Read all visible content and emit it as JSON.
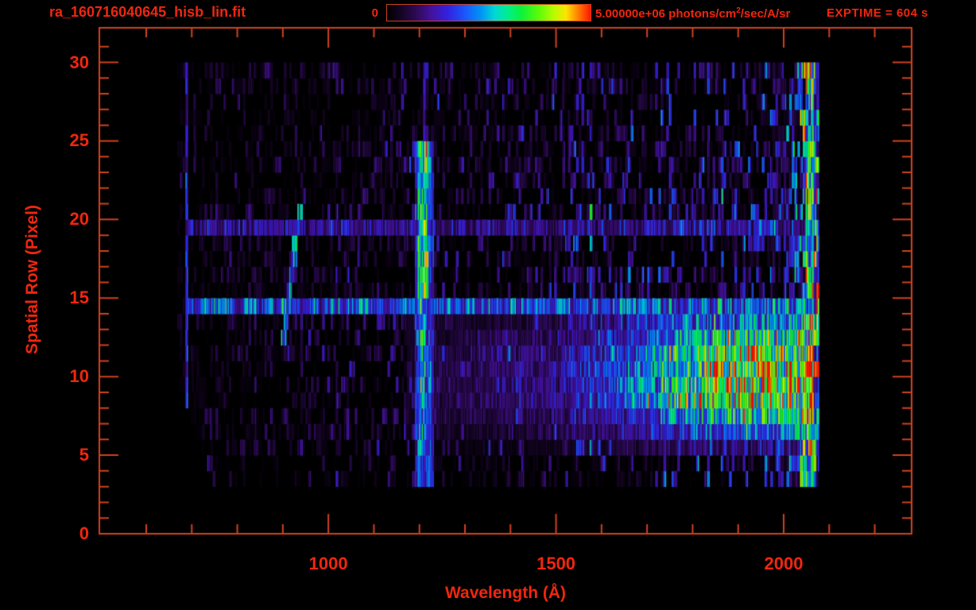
{
  "header": {
    "title": "ra_160716040645_hisb_lin.fit",
    "colorbar_min_label": "0",
    "colorbar_max_label_prefix": "5.00000e+06 photons/cm",
    "colorbar_max_label_sup": "2",
    "colorbar_max_label_suffix": "/sec/A/sr",
    "exposure_label": "EXPTIME = 604 s"
  },
  "chart_data": {
    "type": "heatmap",
    "title": "ra_160716040645_hisb_lin.fit",
    "xlabel": "Wavelength (Å)",
    "ylabel": "Spatial Row (Pixel)",
    "xlim": [
      497,
      2281
    ],
    "ylim": [
      0,
      32.2
    ],
    "x_major_ticks": [
      1000,
      1500,
      2000
    ],
    "x_minor_tick_step": 100,
    "y_major_ticks": [
      0,
      5,
      10,
      15,
      20,
      25,
      30
    ],
    "y_minor_tick_step": 1,
    "grid": false,
    "colorbar": {
      "min": 0,
      "max": 5000000,
      "max_label": "5.00000e+06",
      "units": "photons/cm^2/sec/A/sr",
      "position": "top"
    },
    "exposure_time_s": 604,
    "data_extent": {
      "wavelength_A": [
        668,
        2078
      ],
      "rows": [
        3,
        30
      ]
    },
    "features": [
      {
        "name": "lyman-alpha-emission-line",
        "wavelength_A": 1206,
        "rows": [
          3,
          24.5
        ],
        "faint_rows": [
          25,
          30
        ],
        "peak_rows": [
          15,
          24
        ],
        "relative_intensity": 0.65
      },
      {
        "name": "detector-left-edge-line",
        "wavelength_A": 686,
        "rows": [
          8,
          30
        ],
        "relative_intensity": 0.26
      },
      {
        "name": "airglow-arc",
        "wavelength_start_A": 846,
        "wavelength_slope_A_per_row": 4.4,
        "rows": [
          12,
          20
        ],
        "relative_intensity": 0.36
      },
      {
        "name": "scattered-light-row-band",
        "row": 14,
        "wavelength_range_A": [
          690,
          2078
        ],
        "relative_intensity": 0.34
      },
      {
        "name": "scattered-light-row-band-faint",
        "row": 19,
        "wavelength_range_A": [
          690,
          2078
        ],
        "relative_intensity": 0.18
      },
      {
        "name": "stellar-continuum",
        "rows": [
          5,
          13
        ],
        "wavelength_range_A": [
          1170,
          2078
        ],
        "relative_intensity_max": 0.78
      },
      {
        "name": "long-wavelength-burst",
        "wavelength_range_A": [
          1960,
          2078
        ],
        "rows": [
          3,
          30
        ],
        "relative_intensity": 0.85
      }
    ],
    "colormap_stops": [
      {
        "p": 0.0,
        "c": "#000000"
      },
      {
        "p": 0.06,
        "c": "#12041f"
      },
      {
        "p": 0.14,
        "c": "#2b0a52"
      },
      {
        "p": 0.22,
        "c": "#44129e"
      },
      {
        "p": 0.3,
        "c": "#3222e2"
      },
      {
        "p": 0.38,
        "c": "#1b55fa"
      },
      {
        "p": 0.46,
        "c": "#0093f5"
      },
      {
        "p": 0.53,
        "c": "#00d9d5"
      },
      {
        "p": 0.6,
        "c": "#00ef86"
      },
      {
        "p": 0.66,
        "c": "#0cf23c"
      },
      {
        "p": 0.74,
        "c": "#55fb0a"
      },
      {
        "p": 0.82,
        "c": "#b7fc00"
      },
      {
        "p": 0.88,
        "c": "#fde400"
      },
      {
        "p": 0.94,
        "c": "#ff7d00"
      },
      {
        "p": 1.0,
        "c": "#ff1500"
      }
    ],
    "noise": {
      "seed": 7,
      "column_step_A": 6
    }
  },
  "colors": {
    "text": "#f0260f",
    "axis": "#cf421f",
    "background": "#000000"
  }
}
